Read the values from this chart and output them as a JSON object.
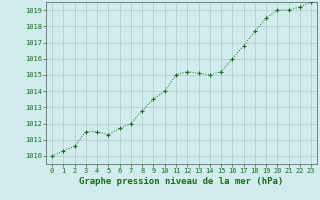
{
  "x": [
    0,
    1,
    2,
    3,
    4,
    5,
    6,
    7,
    8,
    9,
    10,
    11,
    12,
    13,
    14,
    15,
    16,
    17,
    18,
    19,
    20,
    21,
    22,
    23
  ],
  "y": [
    1010.0,
    1010.3,
    1010.6,
    1011.5,
    1011.5,
    1011.3,
    1011.7,
    1012.0,
    1012.8,
    1013.5,
    1014.0,
    1015.0,
    1015.2,
    1015.1,
    1015.0,
    1015.2,
    1016.0,
    1016.8,
    1017.7,
    1018.5,
    1019.0,
    1019.0,
    1019.2,
    1019.5
  ],
  "ylim": [
    1009.5,
    1019.5
  ],
  "xlim": [
    -0.5,
    23.5
  ],
  "yticks": [
    1010,
    1011,
    1012,
    1013,
    1014,
    1015,
    1016,
    1017,
    1018,
    1019
  ],
  "xticks": [
    0,
    1,
    2,
    3,
    4,
    5,
    6,
    7,
    8,
    9,
    10,
    11,
    12,
    13,
    14,
    15,
    16,
    17,
    18,
    19,
    20,
    21,
    22,
    23
  ],
  "xlabel": "Graphe pression niveau de la mer (hPa)",
  "line_color": "#1a6b1a",
  "marker": "+",
  "background_color": "#d0ecec",
  "grid_color": "#b0c8c8",
  "label_color": "#1a6b1a",
  "tick_label_fontsize": 5.0,
  "xlabel_fontsize": 6.5
}
